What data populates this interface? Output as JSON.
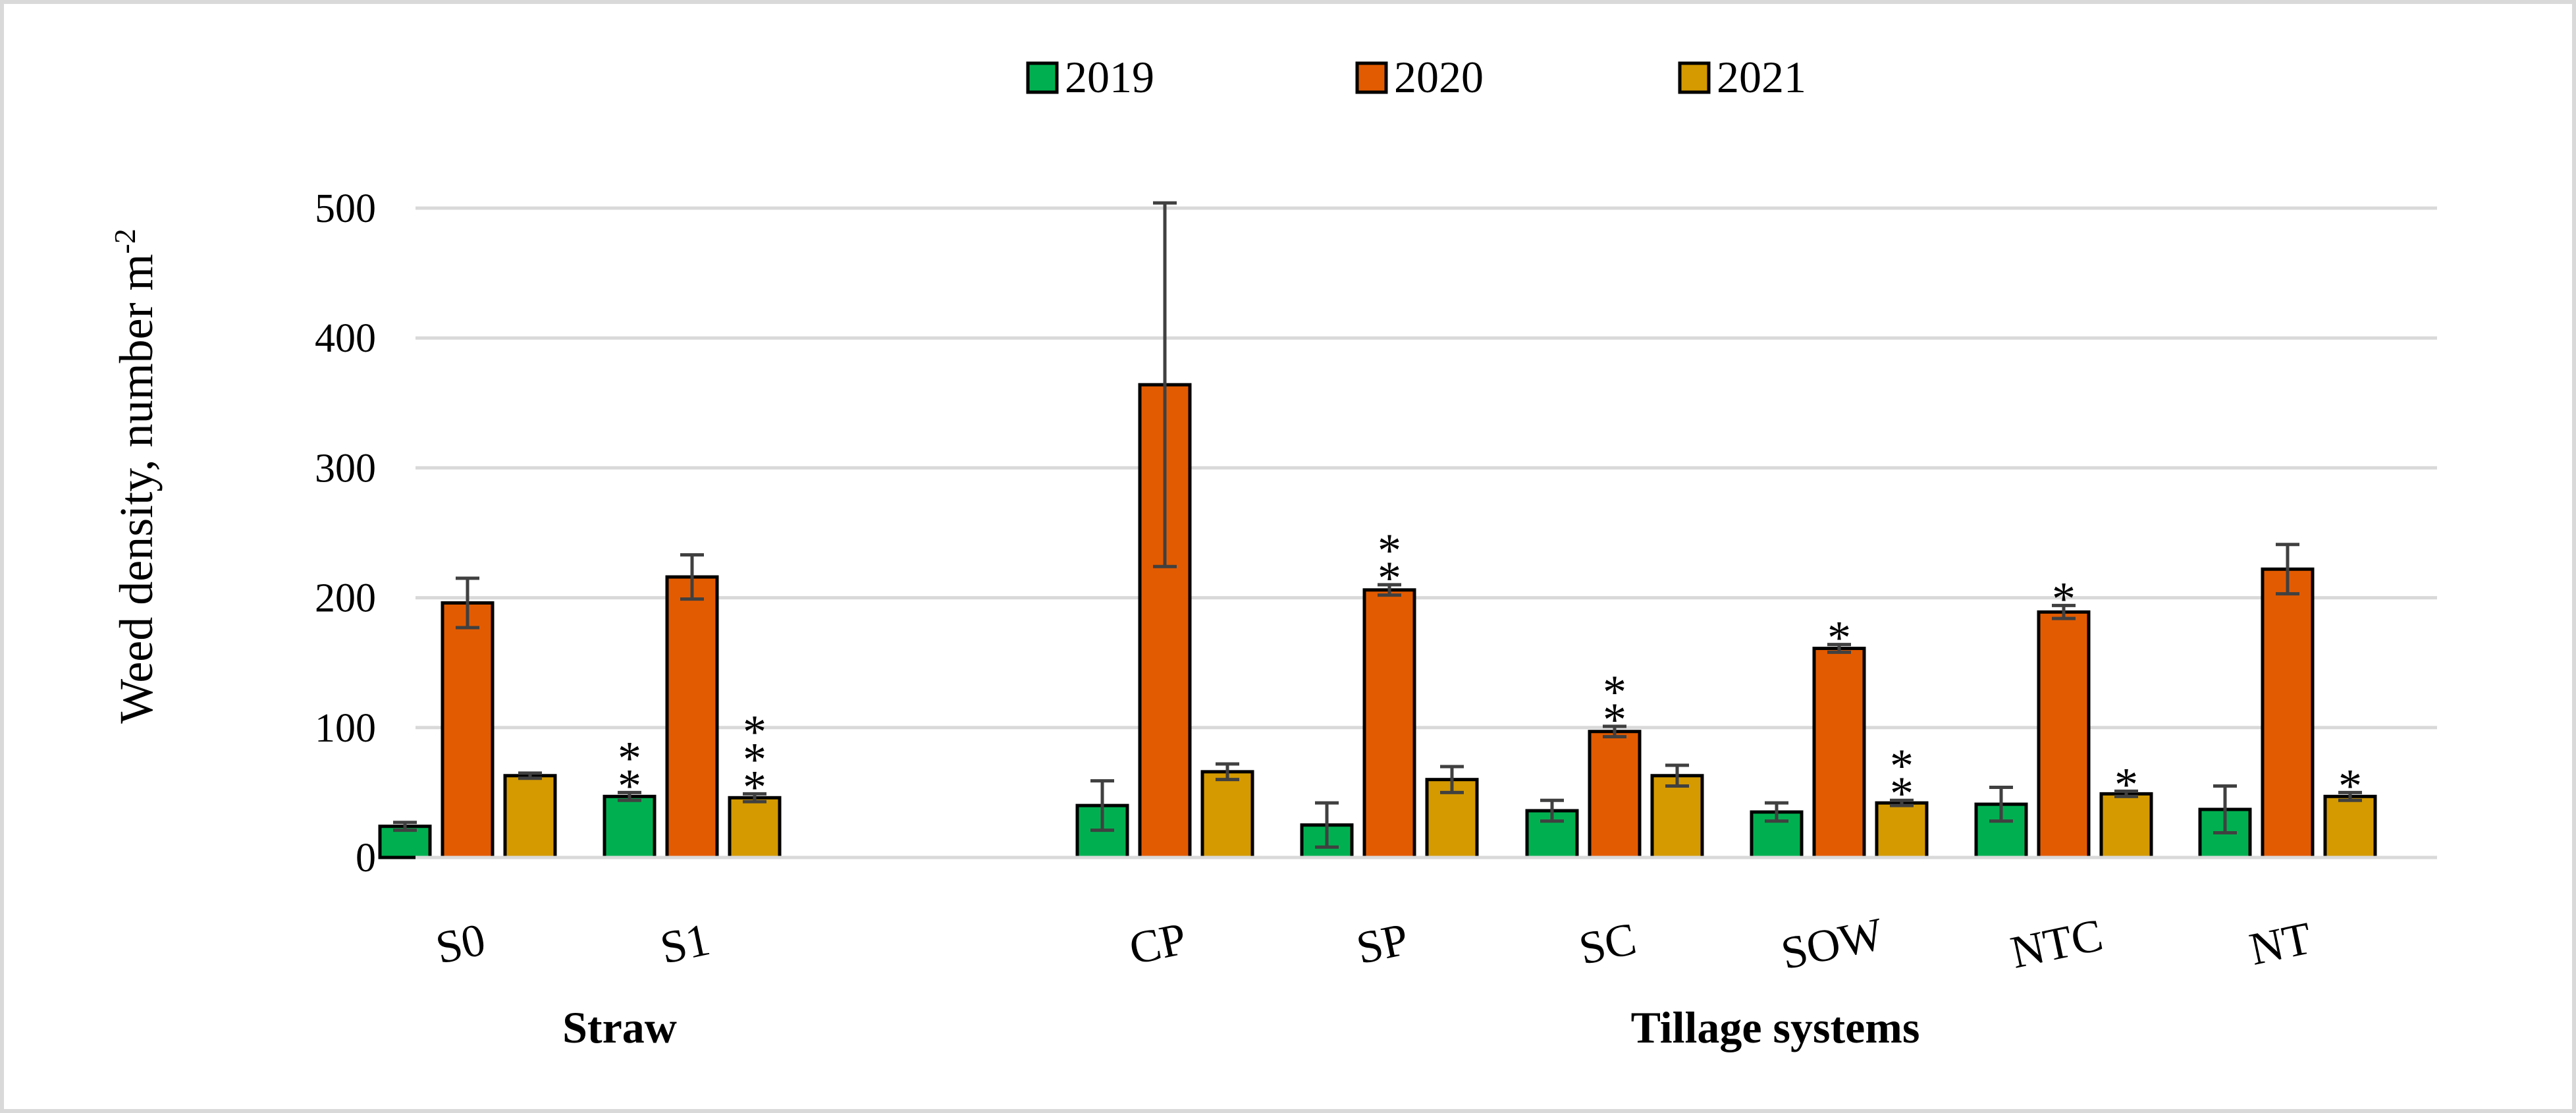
{
  "chart_data": {
    "type": "bar",
    "ylabel": "Weed density, number m",
    "ylabel_superscript": "-2",
    "ylim": [
      0,
      500
    ],
    "yticks": [
      0,
      100,
      200,
      300,
      400,
      500
    ],
    "ytick_labels": [
      "0",
      "100",
      "200",
      "300",
      "400",
      "500"
    ],
    "grid": true,
    "legend_position": "top-center",
    "groups": [
      {
        "label": "Straw",
        "categories": [
          "S0",
          "S1"
        ]
      },
      {
        "label": "Tillage systems",
        "categories": [
          "CP",
          "SP",
          "SC",
          "SOW",
          "NTC",
          "NT"
        ]
      }
    ],
    "categories": [
      "S0",
      "S1",
      "CP",
      "SP",
      "SC",
      "SOW",
      "NTC",
      "NT"
    ],
    "series": [
      {
        "name": "2019",
        "color": "#00b050",
        "values": [
          24,
          47,
          40,
          25,
          36,
          35,
          41,
          37
        ],
        "errors": [
          3,
          3,
          19,
          17,
          8,
          7,
          13,
          18
        ],
        "annotations": [
          "",
          "**",
          "",
          "",
          "",
          "",
          "",
          ""
        ]
      },
      {
        "name": "2020",
        "color": "#e35b00",
        "values": [
          196,
          216,
          364,
          206,
          97,
          161,
          189,
          222
        ],
        "errors": [
          19,
          17,
          140,
          4,
          4,
          3,
          5,
          19
        ],
        "annotations": [
          "",
          "",
          "",
          "**",
          "**",
          "*",
          "*",
          ""
        ]
      },
      {
        "name": "2021",
        "color": "#d49a00",
        "values": [
          63,
          46,
          66,
          60,
          63,
          42,
          49,
          47
        ],
        "errors": [
          2,
          3,
          6,
          10,
          8,
          2,
          2,
          3
        ],
        "annotations": [
          "",
          "***",
          "",
          "",
          "",
          "**",
          "*",
          "*"
        ]
      }
    ]
  }
}
